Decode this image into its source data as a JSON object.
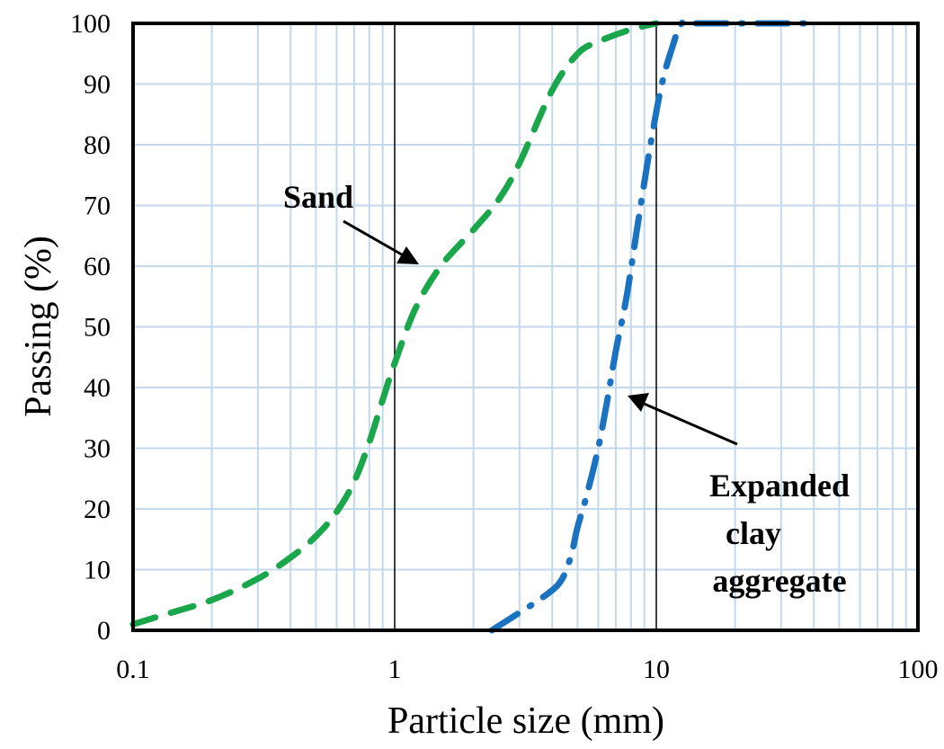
{
  "chart_data": {
    "type": "line",
    "xlabel": "Particle size (mm)",
    "ylabel": "Passing (%)",
    "x_scale": "log",
    "xlim": [
      0.1,
      100
    ],
    "ylim": [
      0,
      100
    ],
    "x_ticks": [
      "0.1",
      "1",
      "10",
      "100"
    ],
    "y_ticks": [
      "0",
      "10",
      "20",
      "30",
      "40",
      "50",
      "60",
      "70",
      "80",
      "90",
      "100"
    ],
    "grid": true,
    "series": [
      {
        "name": "Sand",
        "color": "#1aa64a",
        "style": "dashed",
        "x": [
          0.1,
          0.13,
          0.2,
          0.3,
          0.4,
          0.5,
          0.6,
          0.7,
          0.8,
          0.9,
          1.0,
          1.2,
          1.5,
          2.0,
          2.5,
          3.0,
          4.0,
          5.0,
          6.0,
          8.0,
          10.0
        ],
        "y": [
          1,
          2.5,
          5,
          8.5,
          12,
          15.5,
          19.5,
          24.5,
          31,
          38,
          44,
          53,
          60,
          66,
          71,
          77,
          89,
          95,
          97,
          99,
          100
        ]
      },
      {
        "name": "Expanded clay aggregate",
        "color": "#1a72c0",
        "style": "dash-dot",
        "x": [
          2.35,
          2.9,
          3.7,
          4.3,
          4.7,
          5.0,
          5.4,
          6.0,
          6.5,
          7.0,
          7.7,
          8.5,
          9.5,
          10.5,
          11.5,
          12.5,
          14,
          20,
          30,
          40
        ],
        "y": [
          0,
          2.5,
          5.5,
          8,
          12,
          17,
          22,
          30,
          38,
          46,
          55,
          67,
          80,
          90,
          96,
          100,
          100,
          100,
          100,
          100
        ]
      }
    ],
    "annotations": [
      {
        "text": "Sand",
        "series": "Sand"
      },
      {
        "text_lines": [
          "Expanded",
          "clay",
          "aggregate"
        ],
        "series": "Expanded clay aggregate"
      }
    ]
  }
}
